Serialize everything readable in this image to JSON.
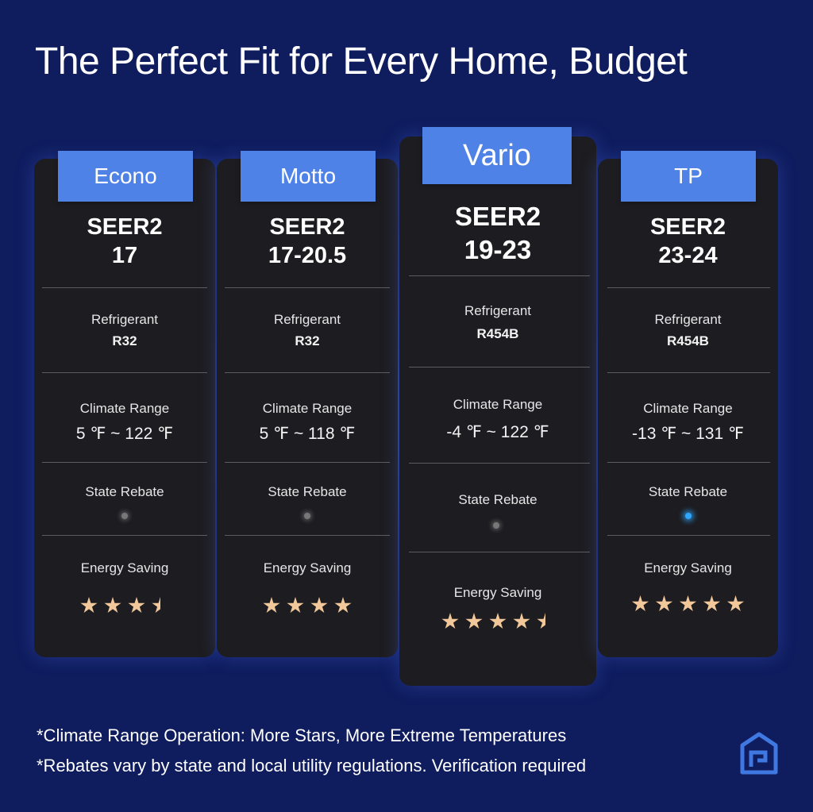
{
  "header": {
    "title": "The Perfect Fit for Every Home, Budget"
  },
  "row_labels": {
    "refrigerant": "Refrigerant",
    "climate_range": "Climate Range",
    "state_rebate": "State Rebate",
    "energy_saving": "Energy Saving"
  },
  "products": [
    {
      "name": "Econo",
      "seer_label": "SEER2",
      "seer_value": "17",
      "refrigerant": "R32",
      "climate_range": "5 ℉ ~ 122 ℉",
      "state_rebate": false,
      "energy_stars": 3.5
    },
    {
      "name": "Motto",
      "seer_label": "SEER2",
      "seer_value": "17-20.5",
      "refrigerant": "R32",
      "climate_range": "5 ℉ ~ 118 ℉",
      "state_rebate": false,
      "energy_stars": 4
    },
    {
      "name": "Vario",
      "seer_label": "SEER2",
      "seer_value": "19-23",
      "refrigerant": "R454B",
      "climate_range": "-4 ℉ ~ 122 ℉",
      "state_rebate": false,
      "energy_stars": 4.5
    },
    {
      "name": "TP",
      "seer_label": "SEER2",
      "seer_value": "23-24",
      "refrigerant": "R454B",
      "climate_range": "-13 ℉ ~ 131 ℉",
      "state_rebate": true,
      "energy_stars": 5
    }
  ],
  "footnotes": [
    "*Climate Range Operation: More Stars, More Extreme Temperatures",
    "*Rebates vary by state and local utility regulations. Verification required"
  ],
  "colors": {
    "background": "#0f1c5e",
    "card": "#1d1c20",
    "tab": "#4f82e6",
    "star": "#f2c89a",
    "rebate_on": "#2ea8ff",
    "rebate_off": "#777777"
  },
  "logo": {
    "icon": "house-logo-icon"
  }
}
